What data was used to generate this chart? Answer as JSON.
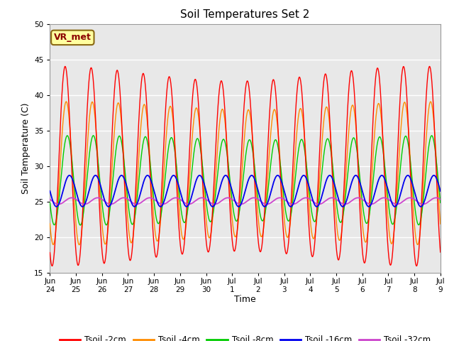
{
  "title": "Soil Temperatures Set 2",
  "xlabel": "Time",
  "ylabel": "Soil Temperature (C)",
  "ylim": [
    15,
    50
  ],
  "yticks": [
    15,
    20,
    25,
    30,
    35,
    40,
    45,
    50
  ],
  "background_color": "#e8e8e8",
  "figure_color": "#ffffff",
  "annotation_text": "VR_met",
  "annotation_box_color": "#ffffa0",
  "annotation_border_color": "#8b6914",
  "line_colors": {
    "2cm": "#ff0000",
    "4cm": "#ff8c00",
    "8cm": "#00cc00",
    "16cm": "#0000ee",
    "32cm": "#cc44cc"
  },
  "legend_labels": [
    "Tsoil -2cm",
    "Tsoil -4cm",
    "Tsoil -8cm",
    "Tsoil -16cm",
    "Tsoil -32cm"
  ],
  "x_tick_labels": [
    "Jun\n24",
    "Jun\n25",
    "Jun\n26",
    "Jun\n27",
    "Jun\n28",
    "Jun\n29",
    "Jun\n30",
    "Jul\n1",
    "Jul\n2",
    "Jul\n3",
    "Jul\n4",
    "Jul\n5",
    "Jul\n6",
    "Jul\n7",
    "Jul\n8",
    "Jul\n9"
  ],
  "num_days": 15,
  "period_hours": 24,
  "mean_2": 30.0,
  "amp_2": 13.0,
  "mean_4": 29.0,
  "amp_4": 9.5,
  "mean_8": 28.0,
  "amp_8": 6.0,
  "mean_16": 26.5,
  "amp_16": 2.2,
  "mean_32": 25.1,
  "amp_32": 0.45
}
